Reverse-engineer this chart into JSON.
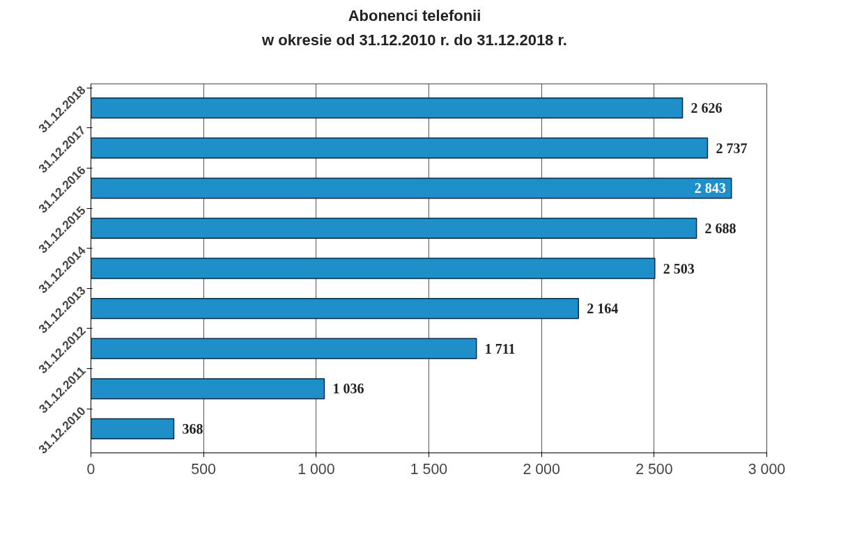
{
  "chart_data": {
    "type": "bar",
    "orientation": "horizontal",
    "title": "Abonenci telefonii\nw okresie od 31.12.2010 r. do 31.12.2018 r.",
    "categories": [
      "31.12.2018",
      "31.12.2017",
      "31.12.2016",
      "31.12.2015",
      "31.12.2014",
      "31.12.2013",
      "31.12.2012",
      "31.12.2011",
      "31.12.2010"
    ],
    "values": [
      2626,
      2737,
      2843,
      2688,
      2503,
      2164,
      1711,
      1036,
      368
    ],
    "value_labels": [
      "2 626",
      "2 737",
      "2 843",
      "2 688",
      "2 503",
      "2 164",
      "1 711",
      "1 036",
      "368"
    ],
    "color": "#1e8fc8",
    "xlim": [
      0,
      3000
    ],
    "xticks": [
      0,
      500,
      {
        "value": 1000,
        "label": "1 000"
      },
      {
        "value": 1500,
        "label": "1 500"
      },
      {
        "value": 2000,
        "label": "2 000"
      },
      {
        "value": 2500,
        "label": "2 500"
      },
      {
        "value": 3000,
        "label": "3 000"
      }
    ],
    "grid": "x"
  }
}
